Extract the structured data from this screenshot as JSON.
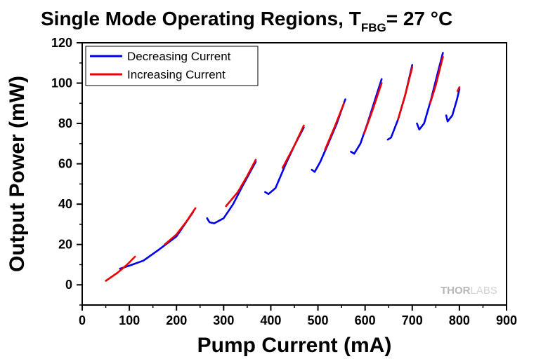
{
  "chart_data": {
    "type": "line",
    "title": {
      "main": "Single Mode Operating Regions, T",
      "subscript": "FBG",
      "suffix": "= 27 °C"
    },
    "xlabel": "Pump Current (mA)",
    "ylabel": "Output Power (mW)",
    "xlim": [
      0,
      900
    ],
    "ylim": [
      -10,
      120
    ],
    "x_ticks": [
      0,
      100,
      200,
      300,
      400,
      500,
      600,
      700,
      800,
      900
    ],
    "y_ticks": [
      0,
      20,
      40,
      60,
      80,
      100,
      120
    ],
    "grid": false,
    "legend_position": "top-left",
    "series": [
      {
        "name": "Decreasing Current",
        "color": "#0000ee",
        "segments": [
          [
            [
              80,
              8
            ],
            [
              100,
              9.5
            ],
            [
              130,
              12
            ],
            [
              160,
              17
            ],
            [
              200,
              24
            ],
            [
              235,
              36
            ]
          ],
          [
            [
              265,
              33
            ],
            [
              270,
              31
            ],
            [
              280,
              30.5
            ],
            [
              300,
              33
            ],
            [
              320,
              40
            ],
            [
              340,
              49
            ],
            [
              368,
              61
            ]
          ],
          [
            [
              388,
              46
            ],
            [
              395,
              45
            ],
            [
              410,
              48
            ],
            [
              430,
              59
            ],
            [
              450,
              69
            ],
            [
              470,
              78
            ]
          ],
          [
            [
              487,
              57
            ],
            [
              493,
              56
            ],
            [
              505,
              61
            ],
            [
              520,
              69
            ],
            [
              540,
              80
            ],
            [
              558,
              92
            ]
          ],
          [
            [
              570,
              66
            ],
            [
              577,
              65
            ],
            [
              590,
              70
            ],
            [
              605,
              80
            ],
            [
              620,
              91
            ],
            [
              635,
              102
            ]
          ],
          [
            [
              648,
              72
            ],
            [
              655,
              73
            ],
            [
              670,
              82
            ],
            [
              685,
              94
            ],
            [
              700,
              109
            ]
          ],
          [
            [
              710,
              80
            ],
            [
              715,
              77
            ],
            [
              725,
              80
            ],
            [
              740,
              92
            ],
            [
              755,
              106
            ],
            [
              765,
              115
            ]
          ],
          [
            [
              772,
              84
            ],
            [
              775,
              81
            ],
            [
              785,
              84
            ],
            [
              795,
              92
            ],
            [
              800,
              97
            ]
          ]
        ]
      },
      {
        "name": "Increasing Current",
        "color": "#ee0000",
        "segments": [
          [
            [
              50,
              2
            ],
            [
              75,
              6
            ],
            [
              95,
              10
            ],
            [
              112,
              14
            ]
          ],
          [
            [
              175,
              20
            ],
            [
              200,
              25
            ],
            [
              220,
              31
            ],
            [
              240,
              38
            ]
          ],
          [
            [
              305,
              39
            ],
            [
              330,
              46
            ],
            [
              350,
              54
            ],
            [
              368,
              62
            ]
          ],
          [
            [
              425,
              58
            ],
            [
              450,
              69
            ],
            [
              470,
              79
            ]
          ],
          [
            [
              515,
              67
            ],
            [
              535,
              78
            ],
            [
              555,
              90
            ]
          ],
          [
            [
              598,
              75
            ],
            [
              615,
              86
            ],
            [
              635,
              100
            ]
          ],
          [
            [
              670,
              82
            ],
            [
              685,
              94
            ],
            [
              700,
              108
            ]
          ],
          [
            [
              738,
              90
            ],
            [
              750,
              99
            ],
            [
              765,
              113
            ]
          ],
          [
            [
              796,
              96
            ],
            [
              800,
              98
            ]
          ]
        ]
      }
    ]
  },
  "watermark": {
    "part1": "THOR",
    "part2": "LABS"
  }
}
